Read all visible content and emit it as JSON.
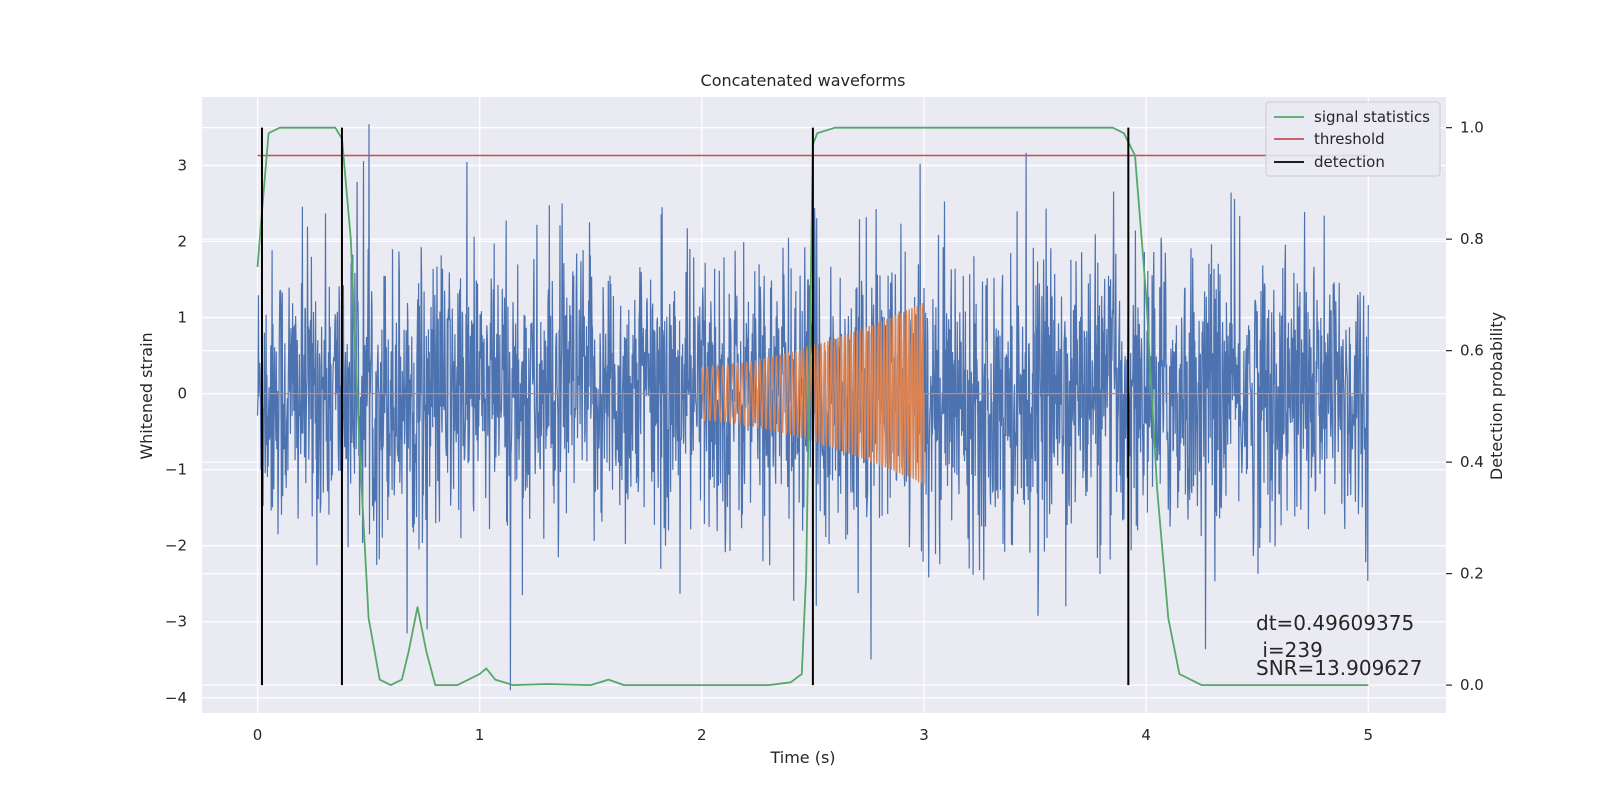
{
  "chart_data": {
    "type": "line",
    "title": "Concatenated waveforms",
    "xlabel": "Time (s)",
    "ylabel": "Whitened strain",
    "ylabel_right": "Detection probability",
    "xlim": [
      -0.25,
      5.35
    ],
    "ylim": [
      -4.2,
      3.9
    ],
    "ylim_right": [
      -0.05,
      1.055
    ],
    "x_ticks": [
      0,
      1,
      2,
      3,
      4,
      5
    ],
    "y_ticks": [
      -4,
      -3,
      -2,
      -1,
      0,
      1,
      2,
      3
    ],
    "y_ticks_right": [
      0.0,
      0.2,
      0.4,
      0.6,
      0.8,
      1.0
    ],
    "x_tick_labels": [
      "0",
      "1",
      "2",
      "3",
      "4",
      "5"
    ],
    "y_tick_labels": [
      "−4",
      "−3",
      "−2",
      "−1",
      "0",
      "1",
      "2",
      "3"
    ],
    "y_tick_labels_right": [
      "0.0",
      "0.2",
      "0.4",
      "0.6",
      "0.8",
      "1.0"
    ],
    "grid": true,
    "background": "#eaeaf2",
    "legend_position": "top-right",
    "legend": [
      {
        "label": "signal statistics",
        "color": "#55a868"
      },
      {
        "label": "threshold",
        "color": "#c44e52"
      },
      {
        "label": "detection",
        "color": "#000000"
      }
    ],
    "noise": {
      "color": "#4c72b0",
      "x_range": [
        0,
        5
      ],
      "typical_amplitude": 1.5,
      "peak_range": [
        -3.9,
        3.6
      ]
    },
    "injected_signal": {
      "color": "#dd8452",
      "x_range": [
        2.0,
        3.0
      ],
      "amplitude_start": 0.35,
      "amplitude_end": 1.2,
      "baseline": 0
    },
    "signal_statistics": {
      "color": "#55a868",
      "axis": "right",
      "x": [
        0.0,
        0.02,
        0.05,
        0.1,
        0.2,
        0.35,
        0.38,
        0.42,
        0.46,
        0.5,
        0.55,
        0.6,
        0.65,
        0.68,
        0.72,
        0.76,
        0.8,
        0.9,
        1.0,
        1.03,
        1.07,
        1.15,
        1.3,
        1.5,
        1.58,
        1.65,
        1.8,
        2.0,
        2.3,
        2.4,
        2.45,
        2.47,
        2.5,
        2.52,
        2.6,
        3.0,
        3.5,
        3.85,
        3.9,
        3.95,
        4.0,
        4.05,
        4.1,
        4.15,
        4.25,
        4.5,
        5.0
      ],
      "y": [
        0.75,
        0.85,
        0.99,
        1.0,
        1.0,
        1.0,
        0.98,
        0.8,
        0.42,
        0.12,
        0.01,
        0.0,
        0.01,
        0.06,
        0.14,
        0.06,
        0.0,
        0.0,
        0.02,
        0.03,
        0.01,
        0.0,
        0.002,
        0.0,
        0.01,
        0.0,
        0.0,
        0.0,
        0.0,
        0.005,
        0.02,
        0.2,
        0.97,
        0.99,
        1.0,
        1.0,
        1.0,
        1.0,
        0.99,
        0.95,
        0.7,
        0.35,
        0.12,
        0.02,
        0.0,
        0.0,
        0.0
      ]
    },
    "threshold": {
      "value": 0.95,
      "color": "#c44e52",
      "x_range": [
        0,
        5
      ],
      "axis": "right"
    },
    "detections": {
      "times": [
        0.02,
        0.38,
        2.5,
        3.92
      ],
      "color": "#000000"
    },
    "annotations": [
      "dt=0.49609375",
      " i=239",
      "SNR=13.909627"
    ]
  }
}
